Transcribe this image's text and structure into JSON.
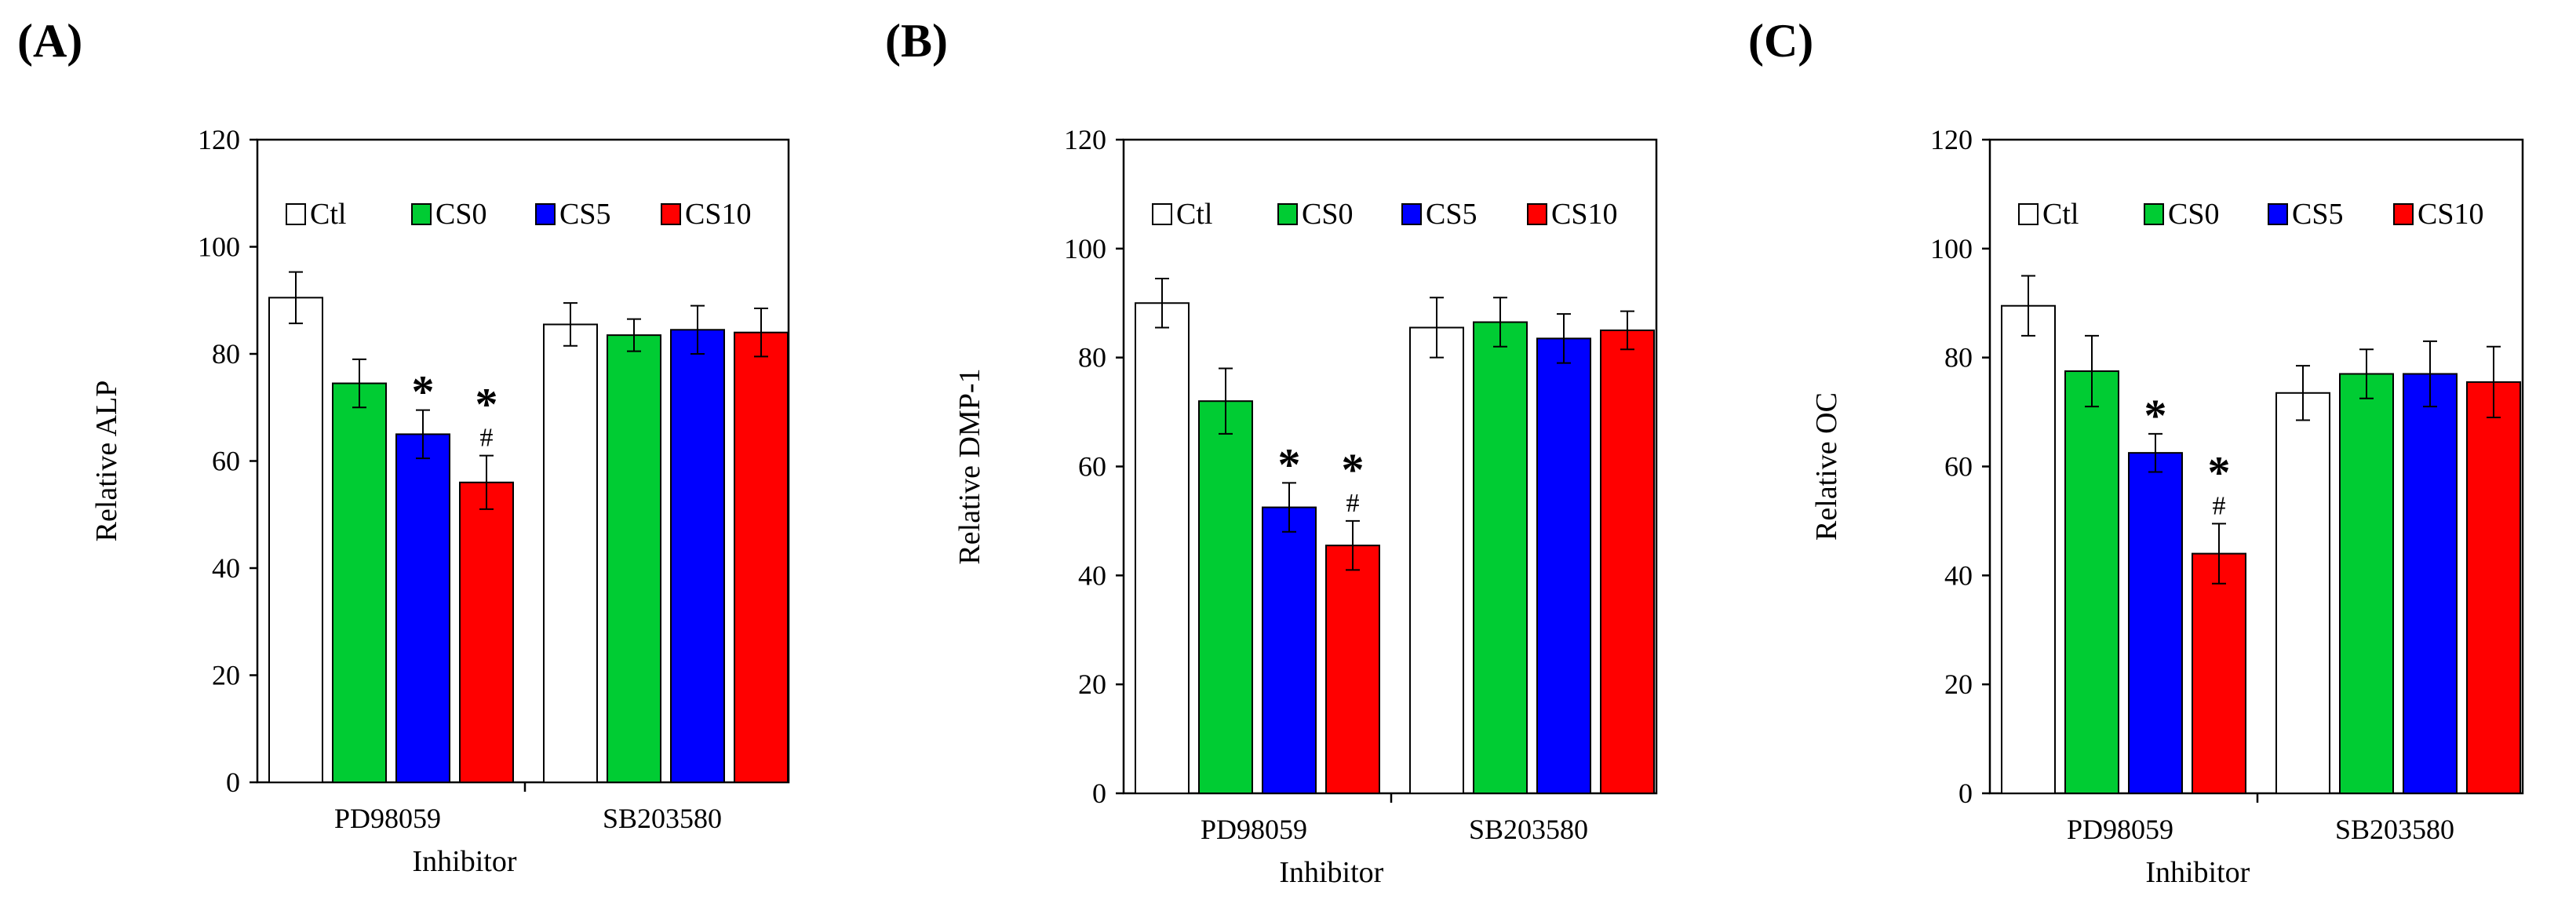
{
  "chart_data": [
    {
      "panel_label": "(A)",
      "type": "bar",
      "ylabel": "Relative ALP",
      "xlabel": "Inhibitor",
      "ylim": [
        0,
        120
      ],
      "yticks": [
        "0",
        "20",
        "40",
        "60",
        "80",
        "100",
        "120"
      ],
      "categories": [
        "PD98059",
        "SB203580"
      ],
      "legend": "top",
      "series": [
        {
          "name": "Ctl",
          "color": "#ffffff",
          "values": [
            90.5,
            85.5
          ],
          "errors": [
            4.8,
            4.0
          ]
        },
        {
          "name": "CS0",
          "color": "#00cc33",
          "values": [
            74.5,
            83.5
          ],
          "errors": [
            4.5,
            3.0
          ]
        },
        {
          "name": "CS5",
          "color": "#0000ff",
          "values": [
            65.0,
            84.5
          ],
          "errors": [
            4.5,
            4.5
          ]
        },
        {
          "name": "CS10",
          "color": "#ff0000",
          "values": [
            56.0,
            84.0
          ],
          "errors": [
            5.0,
            4.5
          ]
        }
      ],
      "annotations": [
        {
          "category": 0,
          "series": 2,
          "marks": [
            "*"
          ]
        },
        {
          "category": 0,
          "series": 3,
          "marks": [
            "*",
            "#"
          ]
        }
      ]
    },
    {
      "panel_label": "(B)",
      "type": "bar",
      "ylabel": "Relative DMP-1",
      "xlabel": "Inhibitor",
      "ylim": [
        0,
        120
      ],
      "yticks": [
        "0",
        "20",
        "40",
        "60",
        "80",
        "100",
        "120"
      ],
      "categories": [
        "PD98059",
        "SB203580"
      ],
      "legend": "top",
      "series": [
        {
          "name": "Ctl",
          "color": "#ffffff",
          "values": [
            90.0,
            85.5
          ],
          "errors": [
            4.5,
            5.5
          ]
        },
        {
          "name": "CS0",
          "color": "#00cc33",
          "values": [
            72.0,
            86.5
          ],
          "errors": [
            6.0,
            4.5
          ]
        },
        {
          "name": "CS5",
          "color": "#0000ff",
          "values": [
            52.5,
            83.5
          ],
          "errors": [
            4.5,
            4.5
          ]
        },
        {
          "name": "CS10",
          "color": "#ff0000",
          "values": [
            45.5,
            85.0
          ],
          "errors": [
            4.5,
            3.5
          ]
        }
      ],
      "annotations": [
        {
          "category": 0,
          "series": 2,
          "marks": [
            "*"
          ]
        },
        {
          "category": 0,
          "series": 3,
          "marks": [
            "*",
            "#"
          ]
        }
      ]
    },
    {
      "panel_label": "(C)",
      "type": "bar",
      "ylabel": "Relative OC",
      "xlabel": "Inhibitor",
      "ylim": [
        0,
        120
      ],
      "yticks": [
        "0",
        "20",
        "40",
        "60",
        "80",
        "100",
        "120"
      ],
      "categories": [
        "PD98059",
        "SB203580"
      ],
      "legend": "top",
      "series": [
        {
          "name": "Ctl",
          "color": "#ffffff",
          "values": [
            89.5,
            73.5
          ],
          "errors": [
            5.5,
            5.0
          ]
        },
        {
          "name": "CS0",
          "color": "#00cc33",
          "values": [
            77.5,
            77.0
          ],
          "errors": [
            6.5,
            4.5
          ]
        },
        {
          "name": "CS5",
          "color": "#0000ff",
          "values": [
            62.5,
            77.0
          ],
          "errors": [
            3.5,
            6.0
          ]
        },
        {
          "name": "CS10",
          "color": "#ff0000",
          "values": [
            44.0,
            75.5
          ],
          "errors": [
            5.5,
            6.5
          ]
        }
      ],
      "annotations": [
        {
          "category": 0,
          "series": 2,
          "marks": [
            "*"
          ]
        },
        {
          "category": 0,
          "series": 3,
          "marks": [
            "*",
            "#"
          ]
        }
      ]
    }
  ]
}
